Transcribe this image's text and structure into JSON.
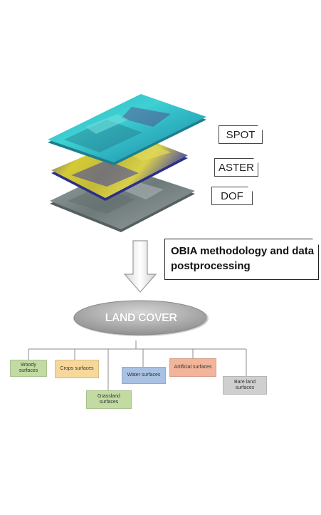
{
  "layers": [
    {
      "label": "SPOT",
      "color": "#36c3c9"
    },
    {
      "label": "ASTER",
      "color": "#cfc63a"
    },
    {
      "label": "DOF",
      "color": "#7f8a8a"
    }
  ],
  "process_label": "OBIA methodology and data postprocessing",
  "root_label": "LAND COVER",
  "classes": [
    {
      "label": "Woody surfaces",
      "color": "#c2dba3"
    },
    {
      "label": "Crops surfaces",
      "color": "#f8d89a"
    },
    {
      "label": "Grassland surfaces",
      "color": "#c2dba3"
    },
    {
      "label": "Water surfaces",
      "color": "#a9c2e3"
    },
    {
      "label": "Artificial surfaces",
      "color": "#f2b49a"
    },
    {
      "label": "Bare land surfaces",
      "color": "#cfcfcf"
    }
  ]
}
